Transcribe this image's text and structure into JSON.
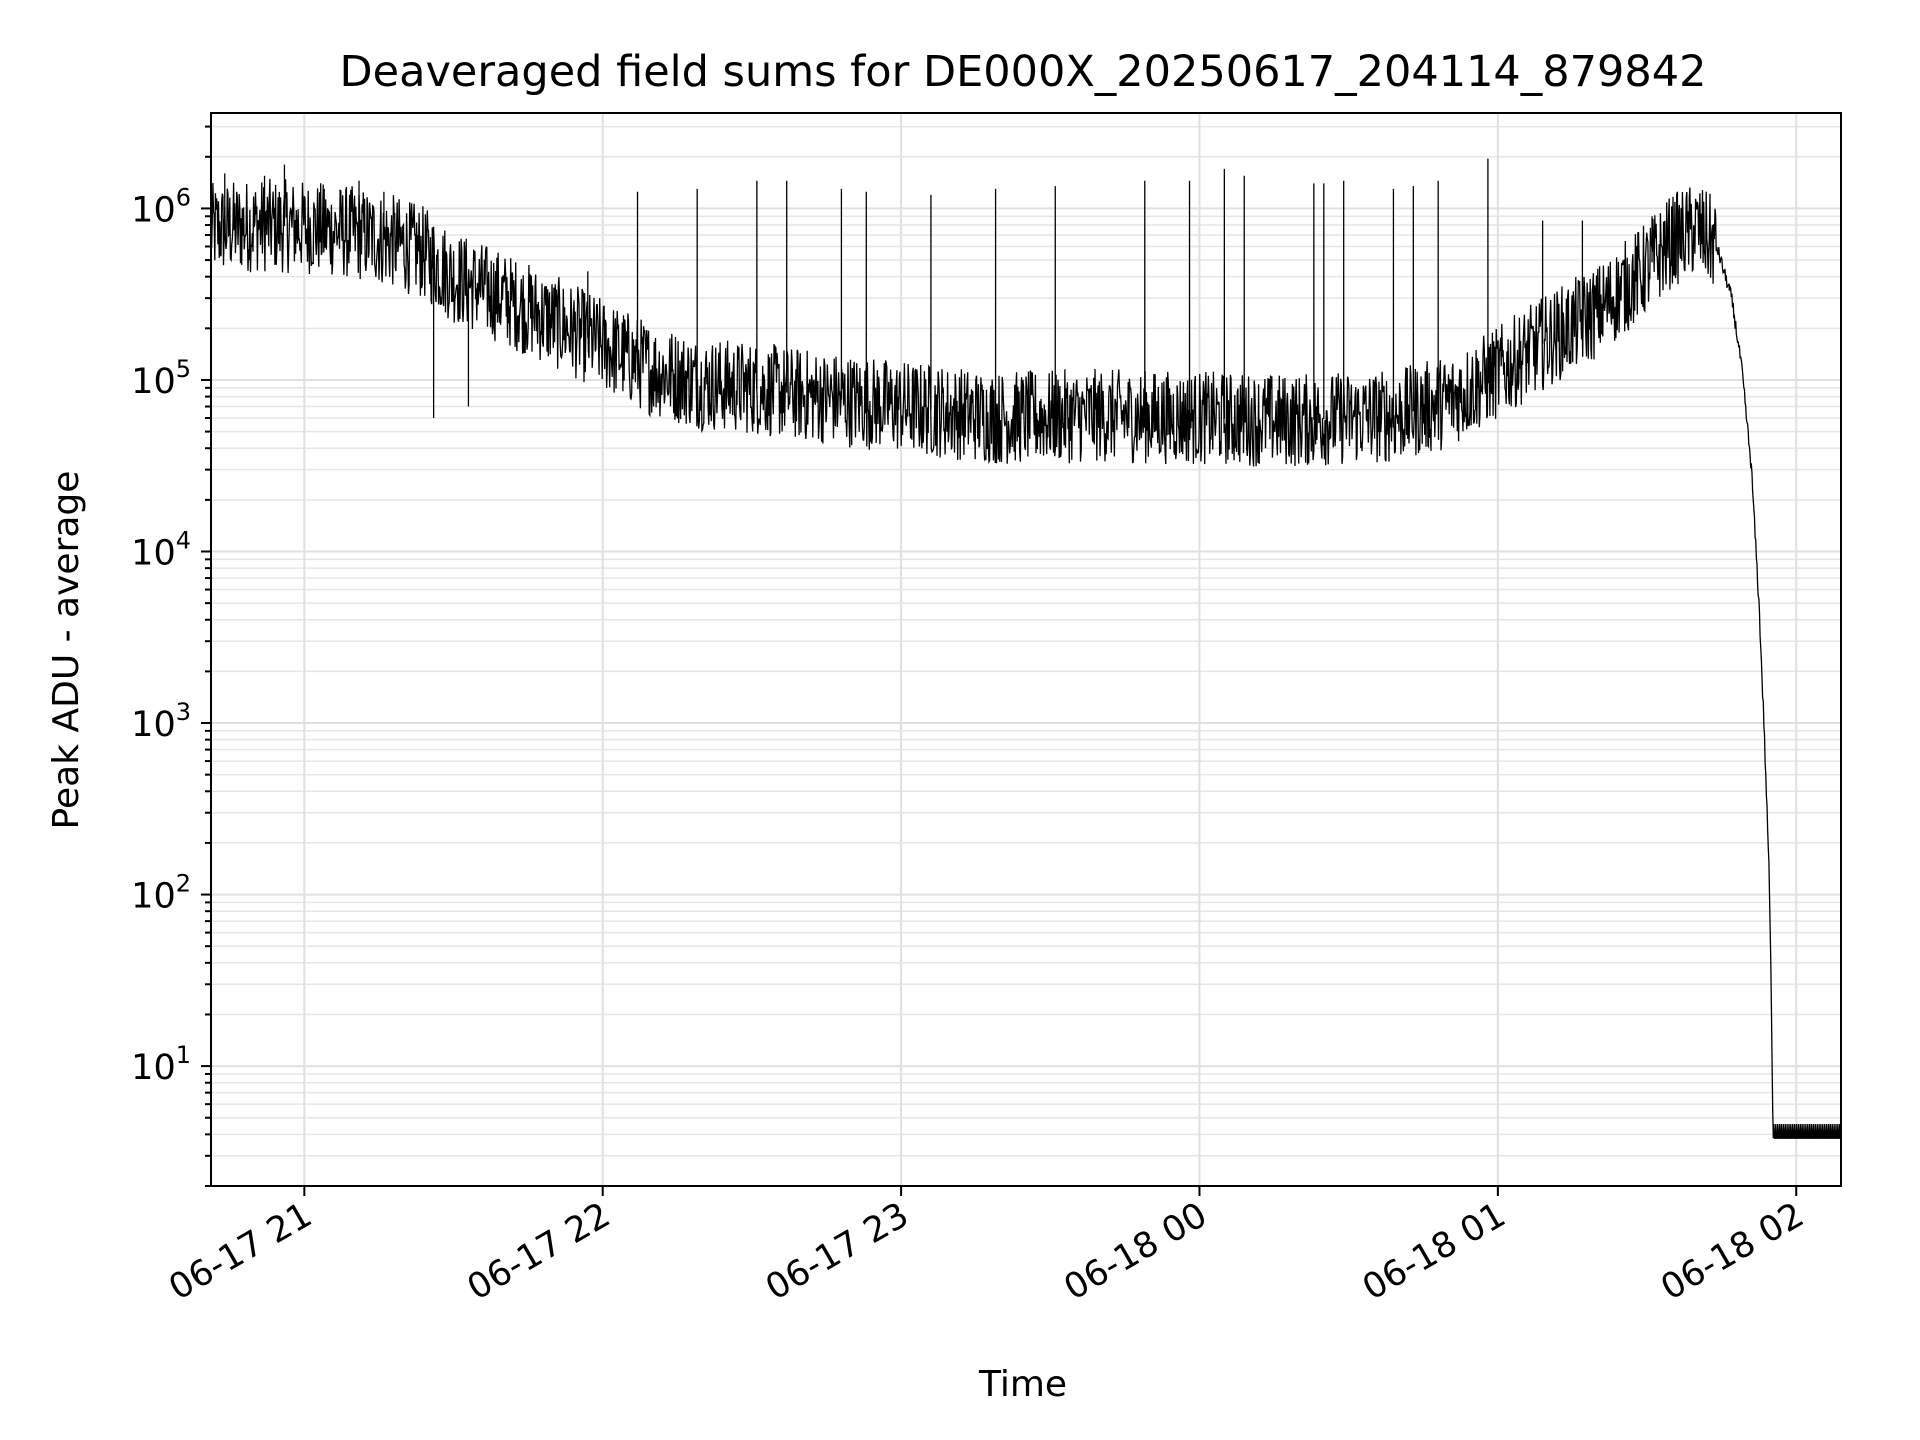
{
  "chart_data": {
    "type": "line",
    "title": "Deaveraged field sums for DE000X_20250617_204114_879842",
    "xlabel": "Time",
    "ylabel": "Peak ADU - average",
    "y_scale": "log",
    "ylim": [
      2,
      3600000
    ],
    "xlim": [
      "2025-06-17T20:41:14",
      "2025-06-18T02:09:00"
    ],
    "grid": "both",
    "line_color": "#000000",
    "x_ticks": [
      {
        "label": "06-17 21",
        "value": "2025-06-17T21:00:00"
      },
      {
        "label": "06-17 22",
        "value": "2025-06-17T22:00:00"
      },
      {
        "label": "06-17 23",
        "value": "2025-06-17T23:00:00"
      },
      {
        "label": "06-18 00",
        "value": "2025-06-18T00:00:00"
      },
      {
        "label": "06-18 01",
        "value": "2025-06-18T01:00:00"
      },
      {
        "label": "06-18 02",
        "value": "2025-06-18T02:00:00"
      }
    ],
    "y_ticks": [
      {
        "base": "10",
        "exp": "1",
        "value": 10
      },
      {
        "base": "10",
        "exp": "2",
        "value": 100
      },
      {
        "base": "10",
        "exp": "3",
        "value": 1000
      },
      {
        "base": "10",
        "exp": "4",
        "value": 10000
      },
      {
        "base": "10",
        "exp": "5",
        "value": 100000
      },
      {
        "base": "10",
        "exp": "6",
        "value": 1000000
      }
    ],
    "series": [
      {
        "baseline": [
          {
            "x": "2025-06-17T20:41:14",
            "y": 750000
          },
          {
            "x": "2025-06-17T20:50:00",
            "y": 800000
          },
          {
            "x": "2025-06-17T21:00:00",
            "y": 780000
          },
          {
            "x": "2025-06-17T21:10:00",
            "y": 720000
          },
          {
            "x": "2025-06-17T21:18:00",
            "y": 640000
          },
          {
            "x": "2025-06-17T21:24:00",
            "y": 550000
          },
          {
            "x": "2025-06-17T21:30:00",
            "y": 400000
          },
          {
            "x": "2025-06-17T21:40:00",
            "y": 300000
          },
          {
            "x": "2025-06-17T21:50:00",
            "y": 220000
          },
          {
            "x": "2025-06-17T22:00:00",
            "y": 160000
          },
          {
            "x": "2025-06-17T22:10:00",
            "y": 115000
          },
          {
            "x": "2025-06-17T22:20:00",
            "y": 95000
          },
          {
            "x": "2025-06-17T22:30:00",
            "y": 90000
          },
          {
            "x": "2025-06-17T22:40:00",
            "y": 82000
          },
          {
            "x": "2025-06-17T23:00:00",
            "y": 70000
          },
          {
            "x": "2025-06-17T23:20:00",
            "y": 60000
          },
          {
            "x": "2025-06-17T23:40:00",
            "y": 62000
          },
          {
            "x": "2025-06-18T00:00:00",
            "y": 60000
          },
          {
            "x": "2025-06-18T00:20:00",
            "y": 58000
          },
          {
            "x": "2025-06-18T00:40:00",
            "y": 62000
          },
          {
            "x": "2025-06-18T00:50:00",
            "y": 75000
          },
          {
            "x": "2025-06-18T01:00:00",
            "y": 110000
          },
          {
            "x": "2025-06-18T01:10:00",
            "y": 170000
          },
          {
            "x": "2025-06-18T01:20:00",
            "y": 250000
          },
          {
            "x": "2025-06-18T01:30:00",
            "y": 450000
          },
          {
            "x": "2025-06-18T01:35:00",
            "y": 650000
          },
          {
            "x": "2025-06-18T01:40:00",
            "y": 760000
          },
          {
            "x": "2025-06-18T01:44:00",
            "y": 600000
          },
          {
            "x": "2025-06-18T01:47:00",
            "y": 300000
          },
          {
            "x": "2025-06-18T01:49:00",
            "y": 120000
          },
          {
            "x": "2025-06-18T01:51:00",
            "y": 30000
          },
          {
            "x": "2025-06-18T01:52:30",
            "y": 5000
          },
          {
            "x": "2025-06-18T01:53:30",
            "y": 1000
          },
          {
            "x": "2025-06-18T01:54:30",
            "y": 150
          },
          {
            "x": "2025-06-18T01:55:00",
            "y": 25
          },
          {
            "x": "2025-06-18T01:55:20",
            "y": 3.8
          },
          {
            "x": "2025-06-18T02:09:00",
            "y": 3.8
          }
        ],
        "spikes": [
          {
            "x": "2025-06-17T20:44:00",
            "y": 1600000
          },
          {
            "x": "2025-06-17T20:52:00",
            "y": 1550000
          },
          {
            "x": "2025-06-17T20:56:00",
            "y": 1800000
          },
          {
            "x": "2025-06-17T21:04:00",
            "y": 1300000
          },
          {
            "x": "2025-06-17T21:11:00",
            "y": 1450000
          },
          {
            "x": "2025-06-17T21:16:00",
            "y": 1250000
          },
          {
            "x": "2025-06-17T21:26:00",
            "y": 60000
          },
          {
            "x": "2025-06-17T21:33:00",
            "y": 70000
          },
          {
            "x": "2025-06-17T21:57:00",
            "y": 430000
          },
          {
            "x": "2025-06-17T22:07:00",
            "y": 1250000
          },
          {
            "x": "2025-06-17T22:19:00",
            "y": 1300000
          },
          {
            "x": "2025-06-17T22:31:00",
            "y": 1450000
          },
          {
            "x": "2025-06-17T22:37:00",
            "y": 1450000
          },
          {
            "x": "2025-06-17T22:48:00",
            "y": 1300000
          },
          {
            "x": "2025-06-17T22:53:00",
            "y": 1250000
          },
          {
            "x": "2025-06-17T23:06:00",
            "y": 1200000
          },
          {
            "x": "2025-06-17T23:19:00",
            "y": 1300000
          },
          {
            "x": "2025-06-17T23:31:00",
            "y": 1350000
          },
          {
            "x": "2025-06-17T23:49:00",
            "y": 1450000
          },
          {
            "x": "2025-06-17T23:58:00",
            "y": 1450000
          },
          {
            "x": "2025-06-18T00:05:00",
            "y": 1700000
          },
          {
            "x": "2025-06-18T00:09:00",
            "y": 1550000
          },
          {
            "x": "2025-06-18T00:23:00",
            "y": 1400000
          },
          {
            "x": "2025-06-18T00:25:00",
            "y": 1400000
          },
          {
            "x": "2025-06-18T00:29:00",
            "y": 1450000
          },
          {
            "x": "2025-06-18T00:39:00",
            "y": 1300000
          },
          {
            "x": "2025-06-18T00:43:00",
            "y": 1350000
          },
          {
            "x": "2025-06-18T00:48:00",
            "y": 1450000
          },
          {
            "x": "2025-06-18T00:58:00",
            "y": 1950000
          },
          {
            "x": "2025-06-18T01:09:00",
            "y": 850000
          },
          {
            "x": "2025-06-18T01:17:00",
            "y": 850000
          },
          {
            "x": "2025-06-18T01:31:00",
            "y": 900000
          }
        ]
      }
    ]
  }
}
